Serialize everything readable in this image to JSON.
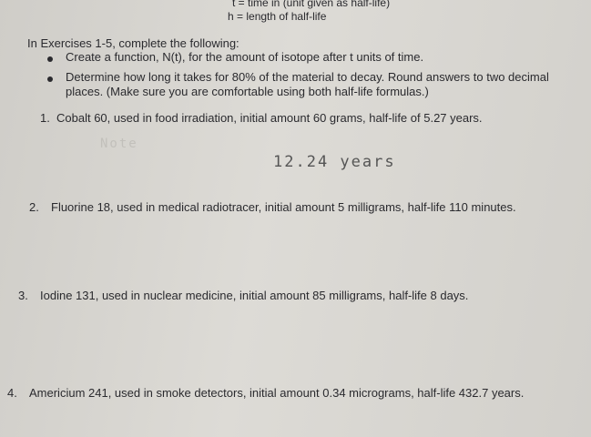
{
  "header": {
    "line1": "t = time in (unit given as half-life)",
    "line2": "h = length of half-life"
  },
  "instructions": {
    "intro": "In Exercises 1-5, complete the following:",
    "bullets": [
      "Create a function, N(t), for the amount of isotope after t units of time.",
      "Determine how long it takes for 80% of the material to decay.  Round answers to two decimal places. (Make sure you are comfortable using both half-life formulas.)"
    ]
  },
  "exercises": [
    {
      "number": "1.",
      "text": "Cobalt 60, used in food irradiation, initial amount 60 grams, half-life of 5.27 years."
    },
    {
      "number": "2.",
      "text": "Fluorine 18, used in medical radiotracer, initial amount 5 milligrams, half-life 110 minutes."
    },
    {
      "number": "3.",
      "text": "Iodine 131, used in nuclear medicine, initial amount 85 milligrams, half-life 8 days."
    },
    {
      "number": "4.",
      "text": "Americium 241, used in smoke detectors, initial amount 0.34 micrograms, half-life 432.7 years."
    }
  ],
  "handwritten": {
    "answer1": "12.24 years",
    "faint": "Note"
  }
}
